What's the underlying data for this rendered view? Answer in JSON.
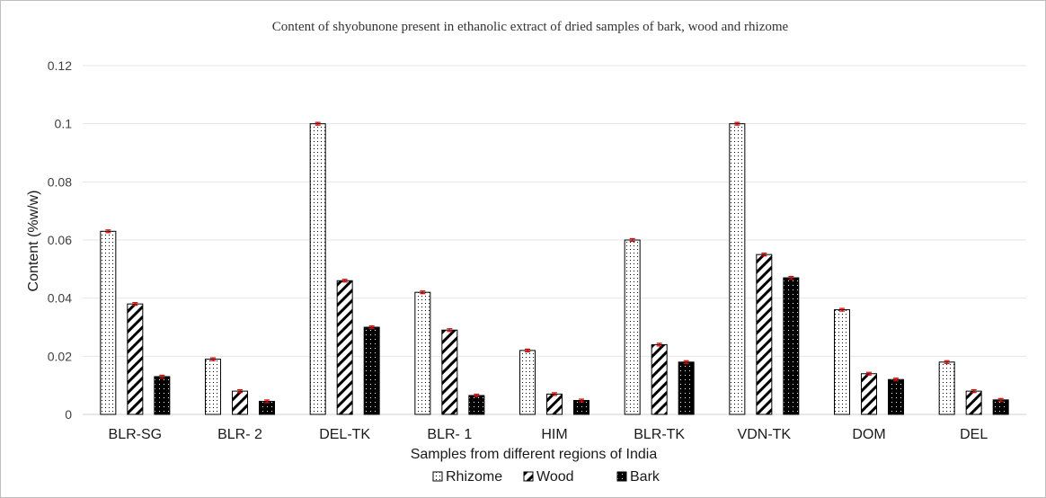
{
  "chart_data": {
    "type": "bar",
    "title": "Content of shyobunone present in ethanolic extract of dried samples of bark, wood and rhizome",
    "xlabel": "Samples from different regions of India",
    "ylabel": "Content (%w/w)",
    "ylim": [
      0,
      0.12
    ],
    "yticks": [
      "0",
      "0.02",
      "0.04",
      "0.06",
      "0.08",
      "0.1",
      "0.12"
    ],
    "categories": [
      "BLR-SG",
      "BLR- 2",
      "DEL-TK",
      "BLR- 1",
      "HIM",
      "BLR-TK",
      "VDN-TK",
      "DOM",
      "DEL"
    ],
    "series": [
      {
        "name": "Rhizome",
        "pattern": "dots",
        "values": [
          0.063,
          0.019,
          0.1,
          0.042,
          0.022,
          0.06,
          0.1,
          0.036,
          0.018
        ]
      },
      {
        "name": "Wood",
        "pattern": "diagonal-hatch",
        "values": [
          0.038,
          0.008,
          0.046,
          0.029,
          0.007,
          0.024,
          0.055,
          0.014,
          0.008
        ]
      },
      {
        "name": "Bark",
        "pattern": "black-dots",
        "values": [
          0.013,
          0.0045,
          0.03,
          0.0065,
          0.0048,
          0.018,
          0.047,
          0.012,
          0.005
        ]
      }
    ],
    "error_bar_color": "#e00000",
    "grid": true,
    "legend_position": "bottom"
  }
}
